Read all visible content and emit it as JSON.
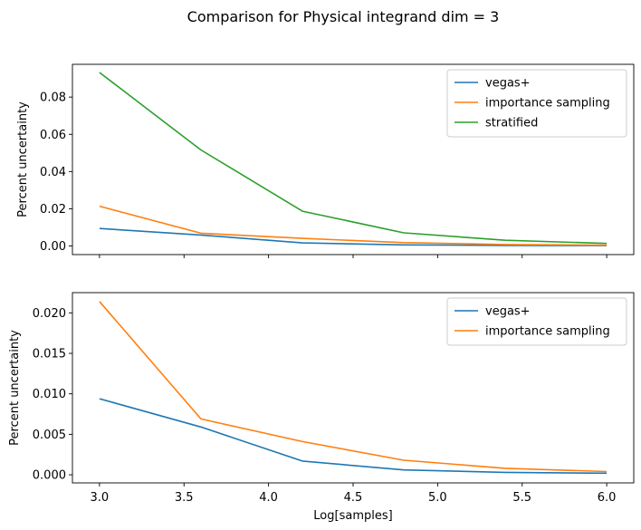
{
  "figure": {
    "title": "Comparison for Physical integrand dim = 3"
  },
  "chart_data": [
    {
      "type": "line",
      "title": "",
      "xlabel": "",
      "ylabel": "Percent uncertainty",
      "xlim": [
        2.84,
        6.16
      ],
      "ylim": [
        -0.0046,
        0.0976
      ],
      "x_ticks": [
        3.0,
        3.5,
        4.0,
        4.5,
        5.0,
        5.5,
        6.0
      ],
      "x_tick_labels_visible": false,
      "y_ticks": [
        0.0,
        0.02,
        0.04,
        0.06,
        0.08
      ],
      "y_tick_labels": [
        "0.00",
        "0.02",
        "0.04",
        "0.06",
        "0.08"
      ],
      "x": [
        3.0,
        3.6,
        4.2,
        4.8,
        5.4,
        6.0
      ],
      "series": [
        {
          "name": "vegas+",
          "color": "#1f77b4",
          "values": [
            0.0094,
            0.0059,
            0.0017,
            0.0006,
            0.0003,
            0.0002
          ]
        },
        {
          "name": "importance sampling",
          "color": "#ff7f0e",
          "values": [
            0.0214,
            0.0069,
            0.0041,
            0.0018,
            0.0008,
            0.0004
          ]
        },
        {
          "name": "stratified",
          "color": "#2ca02c",
          "values": [
            0.0932,
            0.0516,
            0.0187,
            0.0071,
            0.0031,
            0.0014
          ]
        }
      ],
      "legend": "top-right",
      "grid": false
    },
    {
      "type": "line",
      "title": "",
      "xlabel": "Log[samples]",
      "ylabel": "Percent uncertainty",
      "xlim": [
        2.84,
        6.16
      ],
      "ylim": [
        -0.001,
        0.0225
      ],
      "x_ticks": [
        3.0,
        3.5,
        4.0,
        4.5,
        5.0,
        5.5,
        6.0
      ],
      "x_tick_labels": [
        "3.0",
        "3.5",
        "4.0",
        "4.5",
        "5.0",
        "5.5",
        "6.0"
      ],
      "y_ticks": [
        0.0,
        0.005,
        0.01,
        0.015,
        0.02
      ],
      "y_tick_labels": [
        "0.000",
        "0.005",
        "0.010",
        "0.015",
        "0.020"
      ],
      "x": [
        3.0,
        3.6,
        4.2,
        4.8,
        5.4,
        6.0
      ],
      "series": [
        {
          "name": "vegas+",
          "color": "#1f77b4",
          "values": [
            0.0094,
            0.0059,
            0.0017,
            0.0006,
            0.0003,
            0.0002
          ]
        },
        {
          "name": "importance sampling",
          "color": "#ff7f0e",
          "values": [
            0.0214,
            0.0069,
            0.0041,
            0.0018,
            0.0008,
            0.0004
          ]
        }
      ],
      "legend": "top-right",
      "grid": false
    }
  ]
}
